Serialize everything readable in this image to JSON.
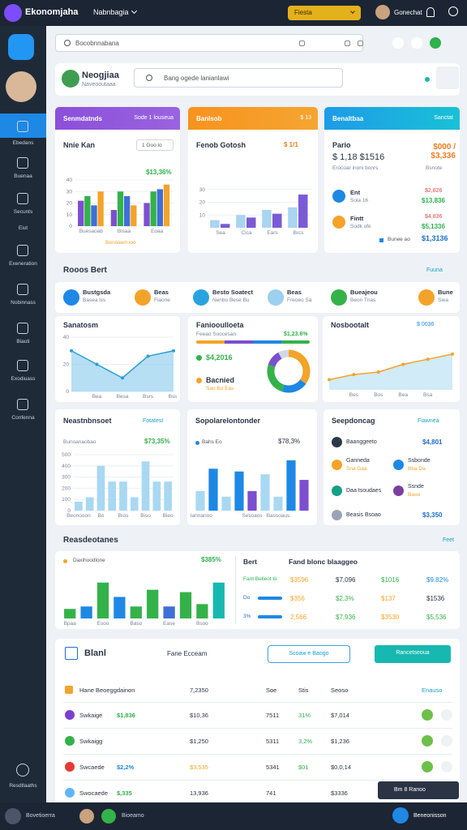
{
  "topbar": {
    "brand": "Ekonomjaha",
    "menu": "Nabnbagia",
    "button": "Fiesta",
    "user": "Gonechat"
  },
  "sidebar": {
    "items": [
      "Ebedans",
      "Buenaa",
      "Secunts",
      "Eiut",
      "Exeneration",
      "Nobinnass",
      "Biauti",
      "Exodiuass",
      "Confenna"
    ],
    "bottom": "Resdtlaaths"
  },
  "search": "Bocobnnabana",
  "profile": {
    "name": "Neogjiaa",
    "subtitle": "Naveooutaaa",
    "search": "Bang ogede lanianlawi"
  },
  "summary": [
    {
      "header": "Senmdatnds",
      "header_right": "Sode 1 louseua",
      "title": "Nnie Kan",
      "dropdown": "1 Goo lo",
      "highlight": "$13,36%",
      "footer": "Benoawn ioo",
      "chart": {
        "type": "bar",
        "ylim": [
          0,
          40
        ],
        "yticks": [
          0,
          10,
          20,
          30,
          40
        ],
        "categories": [
          "Buesaoab",
          "Bisaa",
          "Eoaa"
        ],
        "series": [
          {
            "color": "#7b4fd0",
            "values": [
              22,
              14,
              20
            ]
          },
          {
            "color": "#34b24a",
            "values": [
              26,
              30,
              30
            ]
          },
          {
            "color": "#3e6fd8",
            "values": [
              18,
              26,
              32
            ]
          },
          {
            "color": "#f4a32a",
            "values": [
              30,
              18,
              36
            ]
          }
        ]
      }
    },
    {
      "header": "Banlsob",
      "header_right": "$ 13",
      "title": "Fenob Gotosh",
      "highlight": "$ 1/1",
      "chart": {
        "type": "bar",
        "ylim": [
          0,
          40
        ],
        "yticks": [
          10,
          20,
          30
        ],
        "categories": [
          "Sea",
          "Cica",
          "Ears",
          "Brcs"
        ],
        "series": [
          {
            "color": "#a9d4f2",
            "values": [
              6,
              10,
              14,
              16
            ]
          },
          {
            "color": "#7a5bd6",
            "values": [
              3,
              8,
              11,
              26
            ]
          }
        ]
      }
    },
    {
      "header": "Benaltbaa",
      "header_right": "Sanctat",
      "title": "Pario",
      "amount": "$ 1,18 $1516",
      "caption": "Erocoar inoni bonrs",
      "amount_right": "$000 / $3,336",
      "caption_right": "Bsnote",
      "items": [
        {
          "title": "Ent",
          "sub": "Sola 16",
          "value": "$2,826",
          "value2": "$13,836",
          "color": "#1e88e5"
        },
        {
          "title": "Fintt",
          "sub": "Sodk ufe",
          "value": "$4,836",
          "value2": "$5,1336",
          "color": "#f4a32a"
        }
      ],
      "foot": "Bunee ao",
      "foot_value": "$1,3136"
    }
  ],
  "section1": {
    "title": "Rooos Bert",
    "action": "Fuuna"
  },
  "tiles": [
    {
      "title": "Bustgsda",
      "sub": "Basea lss",
      "color": "#1e88e5"
    },
    {
      "title": "Beas",
      "sub": "Fiaone",
      "color": "#f4a32a"
    },
    {
      "title": "Besto Soatect",
      "sub": "Nenbo Bese Bu",
      "color": "#29a3e0"
    },
    {
      "title": "Beas",
      "sub": "Freoeo Sa",
      "color": "#9ccff0"
    },
    {
      "title": "Bueajeou",
      "sub": "Beon Tnas",
      "color": "#34b24a"
    },
    {
      "title": "Bune",
      "sub": "Siea",
      "color": "#f4a32a"
    }
  ],
  "row3": [
    {
      "title": "Sanatosm",
      "chart": {
        "type": "area",
        "ylim": [
          0,
          40
        ],
        "yticks": [
          0,
          20,
          40
        ],
        "categories": [
          null,
          "Bea",
          "Besa",
          "Bsrs",
          "Bsia"
        ],
        "values": [
          30,
          20,
          10,
          26,
          30
        ],
        "color": "#2a9fd6",
        "fill": "#5db8e6"
      }
    },
    {
      "title": "Faniooulloeta",
      "subtitle": "Feeao Soocesan",
      "highlight": "$1,23.6%",
      "legend": [
        {
          "label": "$4,2016",
          "color": "#34b24a"
        },
        {
          "label": "Bacnied",
          "sub": "Sao Bo Eas",
          "color": "#f4a32a"
        }
      ],
      "chart": {
        "type": "donut",
        "values": [
          35,
          20,
          25,
          12,
          8
        ],
        "colors": [
          "#f4a32a",
          "#1e88e5",
          "#34b24a",
          "#7b4fd0",
          "#cfd8e3"
        ]
      }
    },
    {
      "title": "Nosbootalt",
      "highlight": "$ 0036",
      "chart": {
        "type": "area",
        "ylim": [
          0,
          40
        ],
        "categories": [
          null,
          "Bes",
          "Bos",
          "Bea",
          "Bsa",
          null
        ],
        "values": [
          8,
          12,
          14,
          20,
          24,
          28
        ],
        "color": "#f4a32a",
        "fill": "#9cd3f0"
      }
    }
  ],
  "row4": [
    {
      "title": "Neastnbnsoet",
      "action": "Fotatest",
      "subtitle": "Bunoanaobao",
      "highlight": "$73,35%",
      "chart": {
        "type": "bar",
        "ylim": [
          0,
          500
        ],
        "yticks": [
          0,
          100,
          200,
          300,
          400,
          500
        ],
        "categories": [
          "Beonooon",
          null,
          "Bo",
          null,
          "Bios",
          null,
          "Biso",
          null,
          "Bieo"
        ],
        "values": [
          80,
          120,
          400,
          260,
          260,
          120,
          440,
          260,
          260
        ],
        "color": "#a9d8f2"
      }
    },
    {
      "title": "Sopolarelontonder",
      "legend": "Bahs Eo",
      "highlight": "$78,3%",
      "chart": {
        "type": "bar",
        "ylim": [
          0,
          40
        ],
        "categories": [
          "Bannanoo",
          null,
          null,
          null,
          "Sesoaos",
          null,
          "Bassoaus",
          null,
          null
        ],
        "values": [
          14,
          30,
          10,
          28,
          14,
          26,
          10,
          36,
          22
        ],
        "colors": [
          "#a9d8f2",
          "#1e88e5",
          "#a9d8f2",
          "#1e88e5",
          "#7b4fd0",
          "#a9d8f2",
          "#a9d8f2",
          "#1e88e5",
          "#7b4fd0"
        ]
      }
    },
    {
      "title": "Seepdoncag",
      "action": "Fiawnea",
      "items": [
        {
          "label": "Baanggeeto",
          "color": "#2b3a4a",
          "value": "$4,801"
        },
        {
          "label": "Ganneda",
          "sub": "Sna Gaa",
          "color": "#f4a32a"
        },
        {
          "label": "Ssbonde",
          "sub": "Bba Da",
          "color": "#1e88e5"
        },
        {
          "label": "Daa tsoudaes",
          "color": "#16a085"
        },
        {
          "label": "Ssnde",
          "sub": "Baoo",
          "color": "#7b3fa0"
        },
        {
          "label": "Beasis Bsoao",
          "color": "#9aa3b5",
          "value": "$3,350"
        }
      ]
    }
  ],
  "section2": {
    "title": "Reasdeotanes",
    "action": "Feet"
  },
  "report": {
    "chart_title": "Daxihoodlone",
    "highlight": "$385%",
    "chart": {
      "type": "bar",
      "ylim": [
        0,
        40
      ],
      "categories": [
        "Bpaa",
        null,
        "Esoo",
        null,
        "Baso",
        null,
        "Ease",
        null,
        "Bsoo",
        null
      ],
      "values": [
        8,
        10,
        30,
        18,
        10,
        24,
        10,
        22,
        12,
        30
      ],
      "colors": [
        "#34b24a",
        "#1e88e5",
        "#34b24a",
        "#1e88e5",
        "#34b24a",
        "#34b24a",
        "#3e6fd8",
        "#34b24a",
        "#34b24a",
        "#17b8b0"
      ]
    },
    "table": {
      "title": "Bert",
      "subtitle": "Fand blonc blaaggeo",
      "rows": [
        {
          "label": "Fant Belleot tii",
          "cells": [
            {
              "text": "$3596",
              "color": "#f4a32a"
            },
            {
              "text": "$7,096",
              "color": "#2b3445"
            },
            {
              "text": "$1016",
              "color": "#34b24a"
            },
            {
              "text": "$9.82%",
              "color": "#1e88e5"
            }
          ]
        },
        {
          "label": "Do",
          "cells": [
            {
              "text": "$356",
              "color": "#f4a32a"
            },
            {
              "text": "$2,3%",
              "color": "#34b24a"
            },
            {
              "text": "$137",
              "color": "#f4a32a"
            },
            {
              "text": "$1536",
              "color": "#2b3445"
            }
          ]
        },
        {
          "label": "3%",
          "cells": [
            {
              "text": "2,566",
              "color": "#f4a32a"
            },
            {
              "text": "$7,936",
              "color": "#34b24a"
            },
            {
              "text": "$3530",
              "color": "#f4a32a"
            },
            {
              "text": "$5,536",
              "color": "#34b24a"
            }
          ]
        }
      ]
    }
  },
  "list": {
    "title": "Blanl",
    "subtitle": "Fane Ecceam",
    "button_outline": "Scoaw e Baogo",
    "button": "Rancetseoua",
    "header": [
      "Hane Beoeggdainon",
      "7,2350",
      "Soe",
      "Stis",
      "Seoso",
      "Enauso"
    ],
    "rows": [
      {
        "name": "Swkaige",
        "badge": "$1,836",
        "icon": "#7b3fd0",
        "cells": [
          "$10,36",
          "7511",
          "31%",
          "$7,014"
        ]
      },
      {
        "name": "Swkaigg",
        "icon": "#34b24a",
        "cells": [
          "$1,250",
          "5311",
          "3,2%",
          "$1,236"
        ]
      },
      {
        "name": "Swcaede",
        "badge": "$2,2%",
        "icon": "#e53935",
        "cells": [
          "$3,535",
          "5341",
          "$01",
          "$0,0,14"
        ]
      },
      {
        "name": "Swocaede",
        "badge": "$,335",
        "icon": "#64b5f6",
        "cells": [
          "13,936",
          "741",
          null,
          "$3336"
        ]
      }
    ],
    "chip": "Bm 8 Ranoo"
  },
  "bottombar": {
    "left": "Bovetioerra",
    "middle": "Bioeamo",
    "right": "Beneonisson"
  }
}
